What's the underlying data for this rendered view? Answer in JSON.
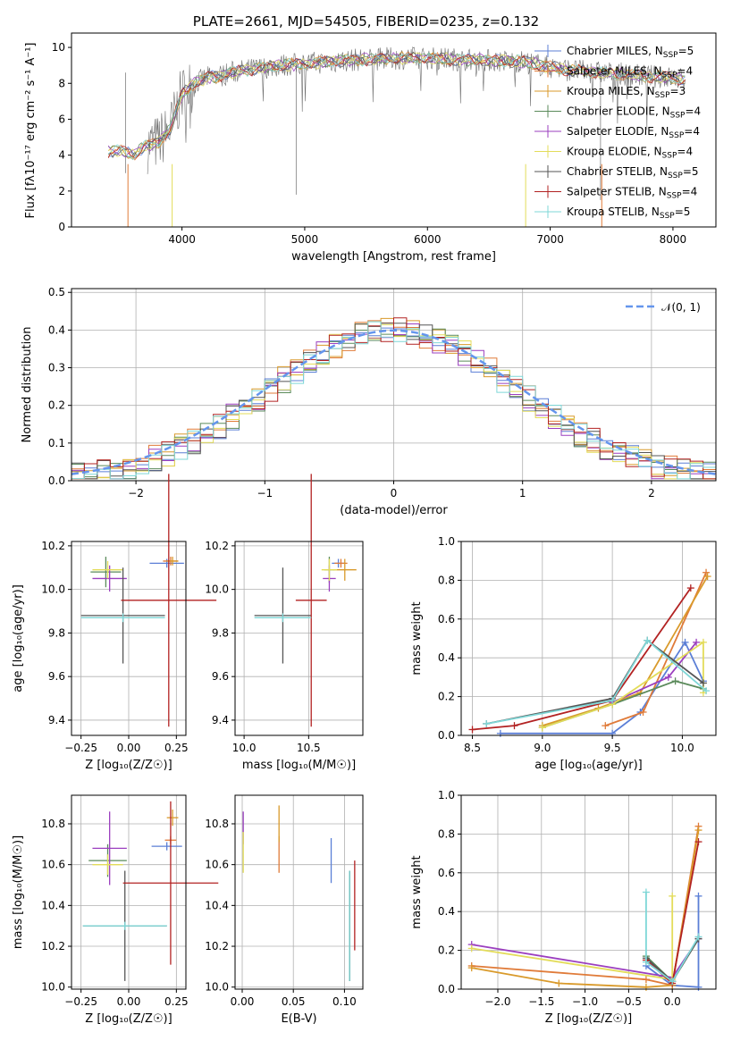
{
  "colors": {
    "Chabrier MILES": "#5b7fd6",
    "Salpeter MILES": "#e07b39",
    "Kroupa MILES": "#d99a2b",
    "Chabrier ELODIE": "#5a8a5a",
    "Salpeter ELODIE": "#9b3fbf",
    "Kroupa ELODIE": "#e3dc5a",
    "Chabrier STELIB": "#555555",
    "Salpeter STELIB": "#b22222",
    "Kroupa STELIB": "#7fd7d7"
  },
  "legend_order": [
    "Chabrier MILES",
    "Salpeter MILES",
    "Kroupa MILES",
    "Chabrier ELODIE",
    "Salpeter ELODIE",
    "Kroupa ELODIE",
    "Chabrier STELIB",
    "Salpeter STELIB",
    "Kroupa STELIB"
  ],
  "chart_data": [
    {
      "id": "spectrum",
      "type": "line",
      "title": "PLATE=2661, MJD=54505, FIBERID=0235, z=0.132",
      "xlabel": "wavelength [Angstrom, rest frame]",
      "ylabel": "Flux [fλ10⁻¹⁷ erg cm⁻² s⁻¹ A⁻¹]",
      "xlim": [
        3100,
        8350
      ],
      "ylim": [
        0,
        10.8
      ],
      "xticks": [
        4000,
        5000,
        6000,
        7000,
        8000
      ],
      "yticks": [
        0,
        2,
        4,
        6,
        8,
        10
      ],
      "legend": [
        {
          "label": "Chabrier MILES, N",
          "sub": "SSP",
          "tail": "=5"
        },
        {
          "label": "Salpeter MILES, N",
          "sub": "SSP",
          "tail": "=4"
        },
        {
          "label": "Kroupa MILES, N",
          "sub": "SSP",
          "tail": "=3"
        },
        {
          "label": "Chabrier ELODIE, N",
          "sub": "SSP",
          "tail": "=4"
        },
        {
          "label": "Salpeter ELODIE, N",
          "sub": "SSP",
          "tail": "=4"
        },
        {
          "label": "Kroupa ELODIE, N",
          "sub": "SSP",
          "tail": "=4"
        },
        {
          "label": "Chabrier STELIB, N",
          "sub": "SSP",
          "tail": "=5"
        },
        {
          "label": "Salpeter STELIB, N",
          "sub": "SSP",
          "tail": "=4"
        },
        {
          "label": "Kroupa STELIB, N",
          "sub": "SSP",
          "tail": "=5"
        }
      ],
      "data_envelope": {
        "x": [
          3380,
          3500,
          3600,
          3700,
          3800,
          3900,
          4000,
          4100,
          4200,
          4300,
          4400,
          4500,
          4600,
          4800,
          5000,
          5200,
          5400,
          5600,
          5800,
          6000,
          6200,
          6400,
          6600,
          6800,
          7000,
          7200,
          7400,
          7600,
          7800,
          8000,
          8100
        ],
        "y": [
          4.2,
          4.3,
          4.0,
          4.5,
          4.7,
          5.4,
          7.4,
          8.0,
          8.3,
          8.4,
          8.6,
          8.7,
          8.8,
          9.0,
          9.1,
          9.2,
          9.3,
          9.35,
          9.4,
          9.4,
          9.35,
          9.3,
          9.25,
          9.2,
          8.9,
          8.7,
          8.6,
          8.5,
          8.4,
          8.3,
          8.2
        ]
      }
    },
    {
      "id": "residuals",
      "type": "line",
      "xlabel": "(data-model)/error",
      "ylabel": "Normed distribution",
      "xlim": [
        -2.5,
        2.5
      ],
      "ylim": [
        0,
        0.51
      ],
      "xticks": [
        -2,
        -1,
        0,
        1,
        2
      ],
      "yticks": [
        0.0,
        0.1,
        0.2,
        0.3,
        0.4,
        0.5
      ],
      "grid": true,
      "legend_label": "𝒩(0, 1)",
      "legend_placement": "top-right",
      "gaussian": {
        "mu": 0,
        "sigma": 1
      }
    },
    {
      "id": "age-vs-Z",
      "type": "scatter",
      "xlabel": "Z [log₁₀(Z/Z☉)]",
      "ylabel": "age  [log₁₀(age/yr)]",
      "xlim": [
        -0.3,
        0.3
      ],
      "ylim": [
        9.33,
        10.22
      ],
      "xticks": [
        -0.25,
        0.0,
        0.25
      ],
      "yticks": [
        9.4,
        9.6,
        9.8,
        10.0,
        10.2
      ],
      "grid": true,
      "points": [
        {
          "model": "Chabrier MILES",
          "x": 0.2,
          "y": 10.12,
          "xerr": 0.09,
          "yerr": 0.02
        },
        {
          "model": "Salpeter MILES",
          "x": 0.22,
          "y": 10.13,
          "xerr": 0.04,
          "yerr": 0.02
        },
        {
          "model": "Kroupa MILES",
          "x": 0.23,
          "y": 10.13,
          "xerr": 0.03,
          "yerr": 0.02
        },
        {
          "model": "Chabrier ELODIE",
          "x": -0.12,
          "y": 10.08,
          "xerr": 0.08,
          "yerr": 0.07
        },
        {
          "model": "Salpeter ELODIE",
          "x": -0.1,
          "y": 10.05,
          "xerr": 0.09,
          "yerr": 0.06
        },
        {
          "model": "Kroupa ELODIE",
          "x": -0.11,
          "y": 10.09,
          "xerr": 0.08,
          "yerr": 0.04
        },
        {
          "model": "Chabrier STELIB",
          "x": -0.03,
          "y": 9.88,
          "xerr": 0.22,
          "yerr": 0.22
        },
        {
          "model": "Salpeter STELIB",
          "x": 0.21,
          "y": 9.95,
          "xerr": 0.25,
          "yerr": 0.58
        },
        {
          "model": "Kroupa STELIB",
          "x": -0.03,
          "y": 9.87,
          "xerr": 0.22,
          "yerr": 0.02
        }
      ]
    },
    {
      "id": "age-vs-mass",
      "type": "scatter",
      "xlabel": "mass [log₁₀(M/M☉)]",
      "ylabel": "",
      "xlim": [
        9.93,
        10.92
      ],
      "ylim": [
        9.33,
        10.22
      ],
      "xticks": [
        10.0,
        10.5
      ],
      "yticks": [
        9.4,
        9.6,
        9.8,
        10.0,
        10.2
      ],
      "grid": true,
      "points": [
        {
          "model": "Chabrier MILES",
          "x": 10.73,
          "y": 10.12,
          "xerr": 0.05,
          "yerr": 0.02
        },
        {
          "model": "Salpeter MILES",
          "x": 10.75,
          "y": 10.12,
          "xerr": 0.05,
          "yerr": 0.02
        },
        {
          "model": "Kroupa MILES",
          "x": 10.78,
          "y": 10.09,
          "xerr": 0.09,
          "yerr": 0.05
        },
        {
          "model": "Chabrier ELODIE",
          "x": 10.66,
          "y": 10.09,
          "xerr": 0.04,
          "yerr": 0.06
        },
        {
          "model": "Salpeter ELODIE",
          "x": 10.66,
          "y": 10.05,
          "xerr": 0.05,
          "yerr": 0.06
        },
        {
          "model": "Kroupa ELODIE",
          "x": 10.66,
          "y": 10.09,
          "xerr": 0.06,
          "yerr": 0.05
        },
        {
          "model": "Chabrier STELIB",
          "x": 10.3,
          "y": 9.88,
          "xerr": 0.22,
          "yerr": 0.22
        },
        {
          "model": "Salpeter STELIB",
          "x": 10.52,
          "y": 9.95,
          "xerr": 0.12,
          "yerr": 0.58
        },
        {
          "model": "Kroupa STELIB",
          "x": 10.3,
          "y": 9.87,
          "xerr": 0.22,
          "yerr": 0.02
        }
      ]
    },
    {
      "id": "weight-vs-age",
      "type": "line",
      "xlabel": "age  [log₁₀(age/yr)]",
      "ylabel": "mass weight",
      "xlim": [
        8.42,
        10.24
      ],
      "ylim": [
        0,
        1.0
      ],
      "xticks": [
        8.5,
        9.0,
        9.5,
        10.0
      ],
      "yticks": [
        0.0,
        0.2,
        0.4,
        0.6,
        0.8,
        1.0
      ],
      "grid": true,
      "series": [
        {
          "model": "Chabrier MILES",
          "x": [
            8.7,
            9.5,
            9.7,
            10.02,
            10.15
          ],
          "y": [
            0.01,
            0.01,
            0.12,
            0.48,
            0.28
          ]
        },
        {
          "model": "Salpeter MILES",
          "x": [
            9.45,
            9.72,
            10.17
          ],
          "y": [
            0.05,
            0.12,
            0.84
          ]
        },
        {
          "model": "Kroupa MILES",
          "x": [
            9.0,
            9.4,
            9.7,
            10.18
          ],
          "y": [
            0.05,
            0.14,
            0.22,
            0.82
          ]
        },
        {
          "model": "Chabrier ELODIE",
          "x": [
            9.0,
            9.5,
            9.95,
            10.15
          ],
          "y": [
            0.04,
            0.16,
            0.28,
            0.24
          ]
        },
        {
          "model": "Salpeter ELODIE",
          "x": [
            9.5,
            9.9,
            10.1
          ],
          "y": [
            0.17,
            0.3,
            0.48
          ]
        },
        {
          "model": "Kroupa ELODIE",
          "x": [
            9.0,
            9.5,
            10.15,
            10.15
          ],
          "y": [
            0.04,
            0.16,
            0.48,
            0.22
          ]
        },
        {
          "model": "Chabrier STELIB",
          "x": [
            8.6,
            9.5,
            9.75,
            10.15
          ],
          "y": [
            0.06,
            0.19,
            0.49,
            0.27
          ]
        },
        {
          "model": "Salpeter STELIB",
          "x": [
            8.5,
            8.8,
            9.5,
            10.06
          ],
          "y": [
            0.03,
            0.05,
            0.18,
            0.76
          ]
        },
        {
          "model": "Kroupa STELIB",
          "x": [
            8.6,
            9.5,
            9.75,
            10.17
          ],
          "y": [
            0.06,
            0.18,
            0.49,
            0.23
          ]
        }
      ]
    },
    {
      "id": "mass-vs-Z",
      "type": "scatter",
      "xlabel": "Z [log₁₀(Z/Z☉)]",
      "ylabel": "mass [log₁₀(M/M☉)]",
      "xlim": [
        -0.3,
        0.3
      ],
      "ylim": [
        9.99,
        10.94
      ],
      "xticks": [
        -0.25,
        0.0,
        0.25
      ],
      "yticks": [
        10.0,
        10.2,
        10.4,
        10.6,
        10.8
      ],
      "grid": true,
      "points": [
        {
          "model": "Chabrier MILES",
          "x": 0.2,
          "y": 10.69,
          "xerr": 0.08,
          "yerr": 0.02
        },
        {
          "model": "Salpeter MILES",
          "x": 0.22,
          "y": 10.72,
          "xerr": 0.03,
          "yerr": 0.02
        },
        {
          "model": "Kroupa MILES",
          "x": 0.23,
          "y": 10.83,
          "xerr": 0.03,
          "yerr": 0.04
        },
        {
          "model": "Chabrier ELODIE",
          "x": -0.11,
          "y": 10.62,
          "xerr": 0.1,
          "yerr": 0.08
        },
        {
          "model": "Salpeter ELODIE",
          "x": -0.1,
          "y": 10.68,
          "xerr": 0.09,
          "yerr": 0.18
        },
        {
          "model": "Kroupa ELODIE",
          "x": -0.11,
          "y": 10.6,
          "xerr": 0.08,
          "yerr": 0.05
        },
        {
          "model": "Chabrier STELIB",
          "x": -0.02,
          "y": 10.3,
          "xerr": 0.22,
          "yerr": 0.27
        },
        {
          "model": "Salpeter STELIB",
          "x": 0.22,
          "y": 10.51,
          "xerr": 0.25,
          "yerr": 0.4
        },
        {
          "model": "Kroupa STELIB",
          "x": -0.02,
          "y": 10.3,
          "xerr": 0.22,
          "yerr": 0.02
        }
      ]
    },
    {
      "id": "mass-vs-ebv",
      "type": "scatter",
      "xlabel": "E(B-V)",
      "ylabel": "",
      "xlim": [
        -0.007,
        0.118
      ],
      "ylim": [
        9.99,
        10.94
      ],
      "xticks": [
        0.0,
        0.05,
        0.1
      ],
      "yticks": [
        10.0,
        10.2,
        10.4,
        10.6,
        10.8
      ],
      "grid": true,
      "points": [
        {
          "model": "Chabrier MILES",
          "x": 0.087,
          "y": 10.62,
          "xerr": 0.0,
          "yerr": 0.11
        },
        {
          "model": "Salpeter MILES",
          "x": 0.036,
          "y": 10.65,
          "xerr": 0.0,
          "yerr": 0.09
        },
        {
          "model": "Kroupa MILES",
          "x": 0.036,
          "y": 10.8,
          "xerr": 0.0,
          "yerr": 0.09
        },
        {
          "model": "Chabrier ELODIE",
          "x": 0.105,
          "y": 10.3,
          "xerr": 0.0,
          "yerr": 0.27
        },
        {
          "model": "Salpeter ELODIE",
          "x": 0.001,
          "y": 10.78,
          "xerr": 0.0,
          "yerr": 0.08
        },
        {
          "model": "Kroupa ELODIE",
          "x": 0.001,
          "y": 10.66,
          "xerr": 0.0,
          "yerr": 0.1
        },
        {
          "model": "Chabrier STELIB",
          "x": 0.105,
          "y": 10.3,
          "xerr": 0.0,
          "yerr": 0.27
        },
        {
          "model": "Salpeter STELIB",
          "x": 0.11,
          "y": 10.4,
          "xerr": 0.0,
          "yerr": 0.22
        },
        {
          "model": "Kroupa STELIB",
          "x": 0.105,
          "y": 10.3,
          "xerr": 0.0,
          "yerr": 0.27
        }
      ]
    },
    {
      "id": "weight-vs-Z",
      "type": "line",
      "xlabel": "Z [log₁₀(Z/Z☉)]",
      "ylabel": "mass weight",
      "xlim": [
        -2.42,
        0.5
      ],
      "ylim": [
        0,
        1.0
      ],
      "xticks": [
        -2.0,
        -1.5,
        -1.0,
        -0.5,
        0.0
      ],
      "yticks": [
        0.0,
        0.2,
        0.4,
        0.6,
        0.8,
        1.0
      ],
      "grid": true,
      "series": [
        {
          "model": "Chabrier MILES",
          "x": [
            -0.3,
            0.0,
            0.3,
            0.3
          ],
          "y": [
            0.12,
            0.02,
            0.01,
            0.48
          ]
        },
        {
          "model": "Salpeter MILES",
          "x": [
            -2.3,
            -0.3,
            0.0,
            0.3
          ],
          "y": [
            0.12,
            0.05,
            0.02,
            0.84
          ]
        },
        {
          "model": "Kroupa MILES",
          "x": [
            -2.3,
            -1.3,
            -0.3,
            0.0,
            0.3
          ],
          "y": [
            0.11,
            0.03,
            0.01,
            0.02,
            0.82
          ]
        },
        {
          "model": "Chabrier ELODIE",
          "x": [
            -0.3,
            0.0,
            0.3
          ],
          "y": [
            0.17,
            0.04,
            0.26
          ]
        },
        {
          "model": "Salpeter ELODIE",
          "x": [
            -2.3,
            0.0,
            0.3
          ],
          "y": [
            0.23,
            0.06,
            0.26
          ]
        },
        {
          "model": "Kroupa ELODIE",
          "x": [
            -2.3,
            0.0,
            0.0
          ],
          "y": [
            0.21,
            0.05,
            0.48
          ]
        },
        {
          "model": "Chabrier STELIB",
          "x": [
            -0.3,
            0.0,
            0.3
          ],
          "y": [
            0.16,
            0.04,
            0.26
          ]
        },
        {
          "model": "Salpeter STELIB",
          "x": [
            -0.3,
            0.0,
            0.3
          ],
          "y": [
            0.15,
            0.03,
            0.76
          ]
        },
        {
          "model": "Kroupa STELIB",
          "x": [
            -0.3,
            -0.3,
            0.0,
            0.3
          ],
          "y": [
            0.5,
            0.14,
            0.04,
            0.27
          ]
        }
      ]
    }
  ]
}
